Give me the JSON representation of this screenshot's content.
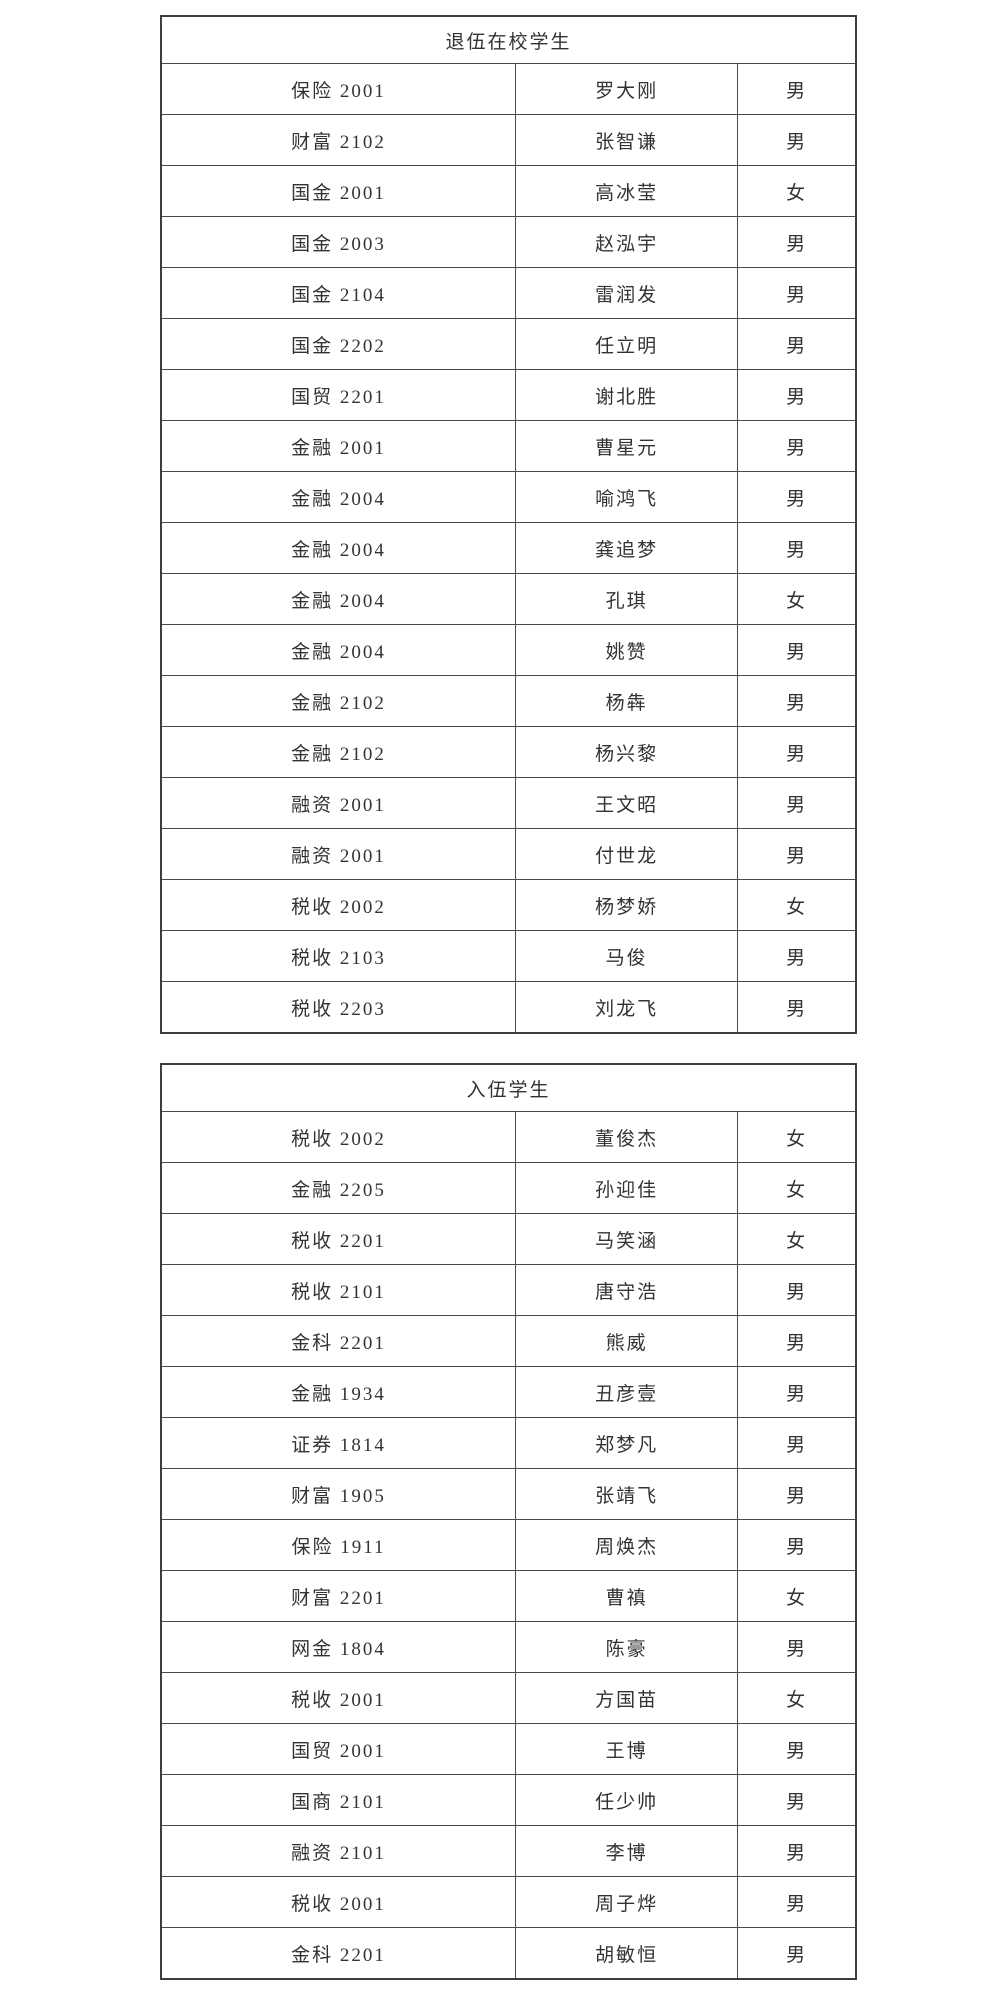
{
  "page": {
    "background": "#ffffff",
    "text_color": "#333333",
    "border_color": "#4a4a4a"
  },
  "tables": [
    {
      "title": "退伍在校学生",
      "columns": [
        "class",
        "name",
        "gender"
      ],
      "rows": [
        [
          "保险 2001",
          "罗大刚",
          "男"
        ],
        [
          "财富 2102",
          "张智谦",
          "男"
        ],
        [
          "国金 2001",
          "高冰莹",
          "女"
        ],
        [
          "国金 2003",
          "赵泓宇",
          "男"
        ],
        [
          "国金 2104",
          "雷润发",
          "男"
        ],
        [
          "国金 2202",
          "任立明",
          "男"
        ],
        [
          "国贸 2201",
          "谢北胜",
          "男"
        ],
        [
          "金融 2001",
          "曹星元",
          "男"
        ],
        [
          "金融 2004",
          "喻鸿飞",
          "男"
        ],
        [
          "金融 2004",
          "龚追梦",
          "男"
        ],
        [
          "金融 2004",
          "孔琪",
          "女"
        ],
        [
          "金融 2004",
          "姚赞",
          "男"
        ],
        [
          "金融 2102",
          "杨犇",
          "男"
        ],
        [
          "金融 2102",
          "杨兴黎",
          "男"
        ],
        [
          "融资 2001",
          "王文昭",
          "男"
        ],
        [
          "融资 2001",
          "付世龙",
          "男"
        ],
        [
          "税收 2002",
          "杨梦娇",
          "女"
        ],
        [
          "税收 2103",
          "马俊",
          "男"
        ],
        [
          "税收 2203",
          "刘龙飞",
          "男"
        ]
      ]
    },
    {
      "title": "入伍学生",
      "columns": [
        "class",
        "name",
        "gender"
      ],
      "rows": [
        [
          "税收 2002",
          "董俊杰",
          "女"
        ],
        [
          "金融 2205",
          "孙迎佳",
          "女"
        ],
        [
          "税收 2201",
          "马笑涵",
          "女"
        ],
        [
          "税收 2101",
          "唐守浩",
          "男"
        ],
        [
          "金科 2201",
          "熊威",
          "男"
        ],
        [
          "金融 1934",
          "丑彦壹",
          "男"
        ],
        [
          "证券 1814",
          "郑梦凡",
          "男"
        ],
        [
          "财富 1905",
          "张靖飞",
          "男"
        ],
        [
          "保险 1911",
          "周焕杰",
          "男"
        ],
        [
          "财富 2201",
          "曹禛",
          "女"
        ],
        [
          "网金 1804",
          "陈豪",
          "男"
        ],
        [
          "税收 2001",
          "方国苗",
          "女"
        ],
        [
          "国贸 2001",
          "王博",
          "男"
        ],
        [
          "国商 2101",
          "任少帅",
          "男"
        ],
        [
          "融资 2101",
          "李博",
          "男"
        ],
        [
          "税收 2001",
          "周子烨",
          "男"
        ],
        [
          "金科 2201",
          "胡敏恒",
          "男"
        ]
      ]
    }
  ]
}
